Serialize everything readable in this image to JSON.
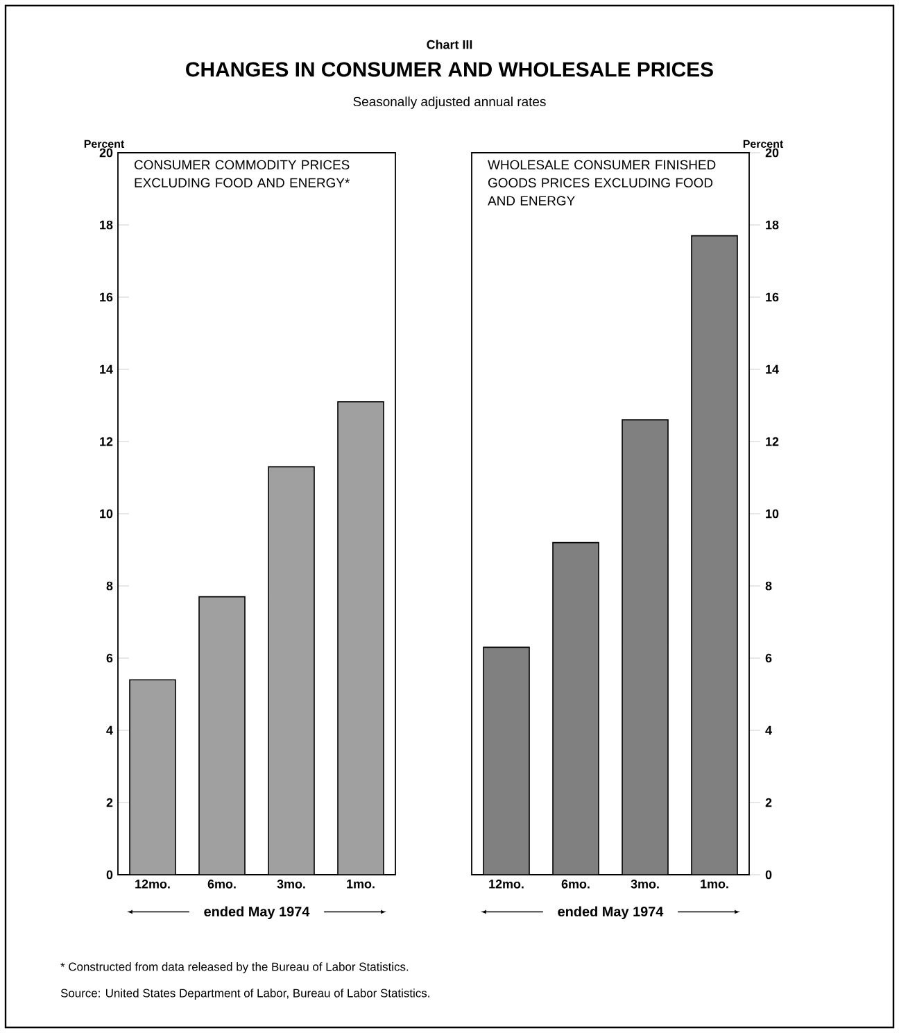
{
  "chart_data": [
    {
      "type": "other",
      "title": "CHANGES IN CONSUMER AND WHOLESALE PRICES",
      "subtitle": "Seasonally adjusted annual rates",
      "annotations": [
        "Chart III",
        "* Constructed from data released by the Bureau of Labor Statistics.",
        "Source: United States Department of Labor, Bureau of Labor Statistics."
      ]
    },
    {
      "type": "bar",
      "title": "CONSUMER COMMODITY PRICES EXCLUDING FOOD AND ENERGY*",
      "categories": [
        "12mo.",
        "6mo.",
        "3mo.",
        "1mo."
      ],
      "values": [
        5.4,
        7.7,
        11.3,
        13.1
      ],
      "color": "#a0a0a0",
      "ylim": [
        0,
        20
      ],
      "yticks": [
        0,
        2,
        4,
        6,
        8,
        10,
        12,
        14,
        16,
        18,
        20
      ],
      "ylabel": "Percent",
      "xlabel": "ended May 1974"
    },
    {
      "type": "bar",
      "title": "WHOLESALE CONSUMER FINISHED GOODS PRICES EXCLUDING FOOD AND ENERGY",
      "categories": [
        "12mo.",
        "6mo.",
        "3mo.",
        "1mo."
      ],
      "values": [
        6.3,
        9.2,
        12.6,
        17.7
      ],
      "color": "#808080",
      "ylim": [
        0,
        20
      ],
      "yticks": [
        0,
        2,
        4,
        6,
        8,
        10,
        12,
        14,
        16,
        18,
        20
      ],
      "ylabel": "Percent",
      "xlabel": "ended May 1974"
    }
  ]
}
